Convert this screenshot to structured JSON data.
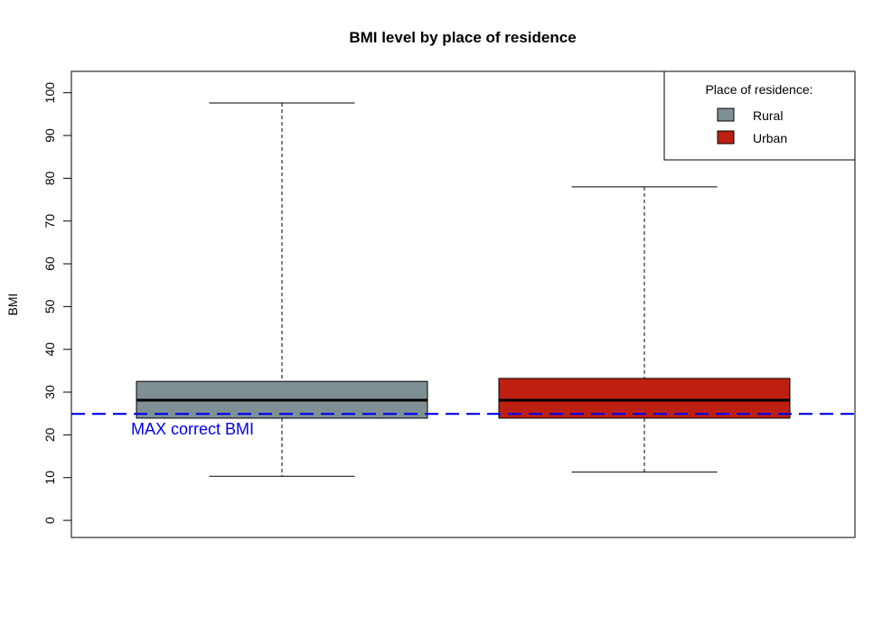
{
  "chart_data": {
    "type": "boxplot",
    "title": "BMI level by place of residence",
    "xlabel": "",
    "ylabel": "BMI",
    "ylim": [
      -4,
      105
    ],
    "yticks": [
      0,
      10,
      20,
      30,
      40,
      50,
      60,
      70,
      80,
      90,
      100
    ],
    "yticks_text": [
      "0",
      "10",
      "20",
      "30",
      "40",
      "50",
      "60",
      "70",
      "80",
      "90",
      "100"
    ],
    "series": [
      {
        "name": "Rural",
        "color": "#7f9095",
        "whisker_low": 10.3,
        "q1": 23.9,
        "median": 28.1,
        "q3": 32.5,
        "whisker_high": 97.6
      },
      {
        "name": "Urban",
        "color": "#bd2011",
        "whisker_low": 11.3,
        "q1": 23.9,
        "median": 28.1,
        "q3": 33.2,
        "whisker_high": 78.0
      }
    ],
    "legend": {
      "title": "Place of residence:",
      "position": "top-right",
      "entries": [
        "Rural",
        "Urban"
      ]
    },
    "reference_line": {
      "value": 24.9,
      "label": "MAX correct BMI",
      "color": "#0000ee",
      "style": "dashed"
    },
    "grid": false
  }
}
